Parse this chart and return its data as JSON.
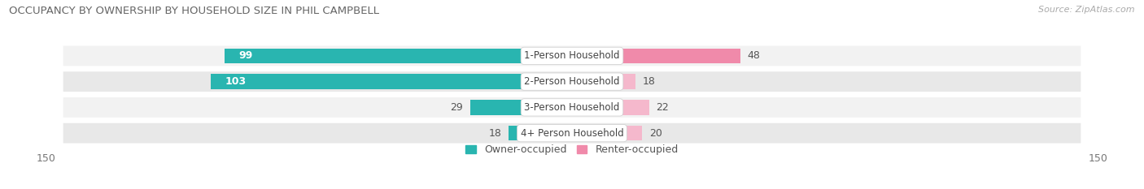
{
  "title": "OCCUPANCY BY OWNERSHIP BY HOUSEHOLD SIZE IN PHIL CAMPBELL",
  "source": "Source: ZipAtlas.com",
  "categories": [
    "1-Person Household",
    "2-Person Household",
    "3-Person Household",
    "4+ Person Household"
  ],
  "owner_values": [
    99,
    103,
    29,
    18
  ],
  "renter_values": [
    48,
    18,
    22,
    20
  ],
  "owner_color": "#29b5b0",
  "renter_color": "#f08aaa",
  "renter_color_light": "#f5b8cc",
  "axis_limit": 150,
  "bar_height": 0.58,
  "row_bg_light": "#f2f2f2",
  "row_bg_dark": "#e8e8e8",
  "title_fontsize": 9.5,
  "source_fontsize": 8,
  "bar_label_fontsize": 9,
  "axis_label_fontsize": 9,
  "legend_fontsize": 9,
  "cat_label_fontsize": 8.5
}
